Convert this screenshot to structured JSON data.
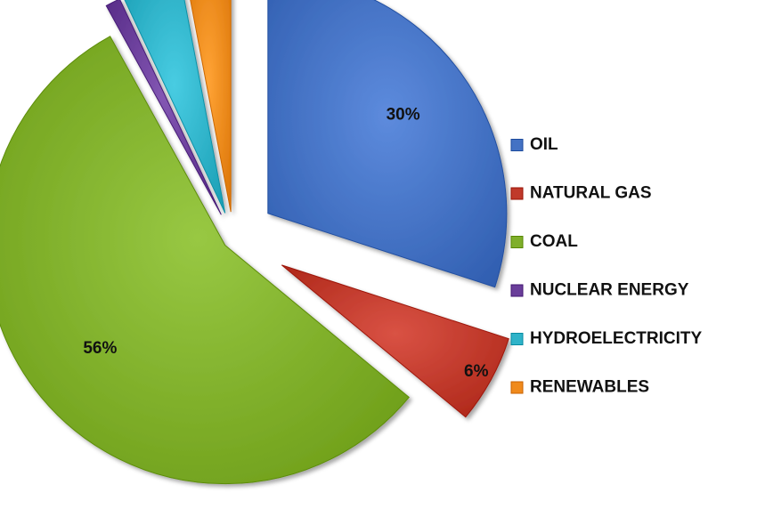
{
  "chart_data": {
    "type": "pie",
    "categories": [
      "OIL",
      "NATURAL GAS",
      "COAL",
      "NUCLEAR ENERGY",
      "HYDROELECTRICITY",
      "RENEWABLES"
    ],
    "values": [
      30,
      6,
      56,
      1,
      4,
      3
    ],
    "labels": [
      "30%",
      "6%",
      "56%",
      "1%",
      "4%",
      "3%"
    ],
    "colors": [
      "#4472C4",
      "#C0392B",
      "#7FAF2A",
      "#6A3E9A",
      "#2FB3C9",
      "#F08A1C"
    ],
    "exploded": true,
    "legend_position": "right"
  }
}
